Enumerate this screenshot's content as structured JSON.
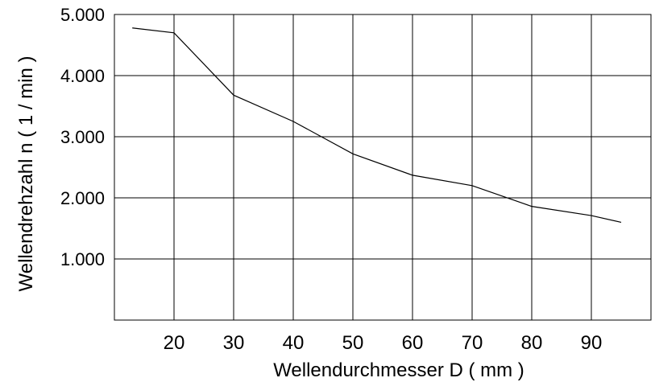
{
  "chart_data": {
    "type": "line",
    "title": "",
    "xlabel": "Wellendurchmesser D ( mm )",
    "ylabel": "Wellendrehzahl n ( 1 / min )",
    "xlim": [
      10,
      100
    ],
    "ylim": [
      0,
      5000
    ],
    "grid": true,
    "x_ticks": [
      20,
      30,
      40,
      50,
      60,
      70,
      80,
      90
    ],
    "x_tick_labels": [
      "20",
      "30",
      "40",
      "50",
      "60",
      "70",
      "80",
      "90"
    ],
    "y_ticks": [
      1000,
      2000,
      3000,
      4000,
      5000
    ],
    "y_tick_labels": [
      "1.000",
      "2.000",
      "3.000",
      "4.000",
      "5.000"
    ],
    "series": [
      {
        "x": [
          13,
          20,
          30,
          40,
          50,
          60,
          70,
          80,
          90,
          95
        ],
        "y": [
          4780,
          4700,
          3680,
          3250,
          2720,
          2370,
          2200,
          1860,
          1710,
          1600
        ],
        "color": "#000000"
      }
    ]
  }
}
